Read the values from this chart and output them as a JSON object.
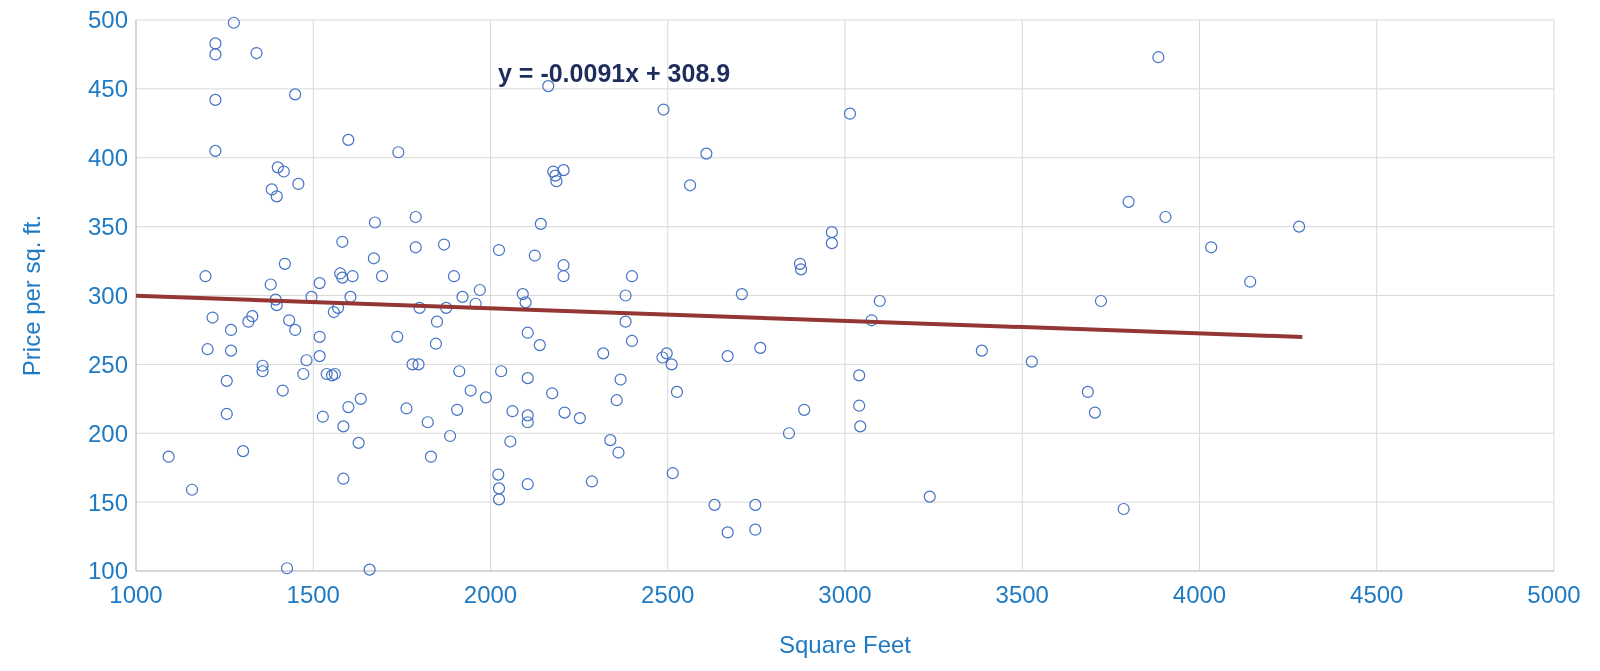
{
  "chart_data": {
    "type": "scatter",
    "xlabel": "Square Feet",
    "ylabel": "Price per sq. ft.",
    "xlim": [
      1000,
      5000
    ],
    "xticks": [
      1000,
      1500,
      2000,
      2500,
      3000,
      3500,
      4000,
      4500,
      5000
    ],
    "ylim": [
      100,
      500
    ],
    "yticks": [
      100,
      150,
      200,
      250,
      300,
      350,
      400,
      450,
      500
    ],
    "grid": true,
    "annotations": [
      "y = -0.0091x + 308.9"
    ],
    "series": [
      {
        "marker": "circle",
        "color": "#4472c4",
        "x": [
          1092,
          1158,
          1196,
          1202,
          1216,
          1224,
          1224,
          1224,
          1224,
          1276,
          1340,
          1256,
          1256,
          1268,
          1268,
          1302,
          1317,
          1328,
          1357,
          1357,
          1380,
          1383,
          1397,
          1400,
          1417,
          1394,
          1397,
          1414,
          1420,
          1432,
          1426,
          1449,
          1449,
          1458,
          1481,
          1472,
          1495,
          1518,
          1518,
          1518,
          1527,
          1538,
          1553,
          1561,
          1558,
          1570,
          1576,
          1582,
          1582,
          1585,
          1585,
          1599,
          1599,
          1605,
          1611,
          1628,
          1634,
          1671,
          1674,
          1659,
          1694,
          1737,
          1740,
          1763,
          1780,
          1789,
          1789,
          1797,
          1800,
          1823,
          1832,
          1849,
          1846,
          1869,
          1875,
          1886,
          1897,
          1906,
          1912,
          1921,
          1944,
          1958,
          1970,
          1987,
          2022,
          2024,
          2024,
          2024,
          2030,
          2056,
          2062,
          2091,
          2099,
          2105,
          2105,
          2105,
          2105,
          2105,
          2125,
          2142,
          2139,
          2163,
          2174,
          2177,
          2183,
          2186,
          2206,
          2206,
          2206,
          2209,
          2252,
          2286,
          2318,
          2338,
          2356,
          2361,
          2367,
          2381,
          2381,
          2399,
          2399,
          2485,
          2488,
          2497,
          2511,
          2514,
          2526,
          2563,
          2609,
          2632,
          2669,
          2669,
          2709,
          2747,
          2747,
          2761,
          2842,
          2876,
          2885,
          2873,
          2963,
          2963,
          3014,
          3040,
          3040,
          3043,
          3075,
          3098,
          3239,
          3386,
          3527,
          3685,
          3705,
          3722,
          3786,
          3800,
          3884,
          3904,
          4033,
          4143,
          4281
        ],
        "values": [
          183,
          159,
          314,
          261,
          284,
          405,
          442,
          475,
          483,
          498,
          476,
          238,
          214,
          260,
          275,
          187,
          281,
          285,
          249,
          245,
          308,
          377,
          372,
          393,
          390,
          297,
          293,
          231,
          323,
          282,
          102,
          446,
          275,
          381,
          253,
          243,
          299,
          309,
          270,
          256,
          212,
          243,
          242,
          243,
          288,
          291,
          316,
          339,
          313,
          205,
          167,
          219,
          413,
          299,
          314,
          193,
          225,
          327,
          353,
          101,
          314,
          270,
          404,
          218,
          250,
          357,
          335,
          250,
          291,
          208,
          183,
          281,
          265,
          337,
          291,
          198,
          314,
          217,
          245,
          299,
          231,
          294,
          304,
          226,
          170,
          160,
          152,
          333,
          245,
          194,
          216,
          301,
          295,
          163,
          273,
          240,
          213,
          208,
          329,
          352,
          264,
          452,
          229,
          390,
          387,
          383,
          391,
          322,
          314,
          215,
          211,
          165,
          258,
          195,
          224,
          186,
          239,
          281,
          300,
          314,
          267,
          255,
          435,
          258,
          250,
          171,
          230,
          380,
          403,
          148,
          128,
          256,
          301,
          148,
          130,
          262,
          200,
          319,
          217,
          323,
          346,
          338,
          432,
          242,
          220,
          205,
          282,
          296,
          154,
          260,
          252,
          230,
          215,
          296,
          145,
          368,
          473,
          357,
          335,
          310,
          350
        ]
      },
      {
        "type": "line",
        "marker": "none",
        "color": "#943634",
        "x": [
          1000,
          4290
        ],
        "values": [
          299.8,
          269.9
        ]
      }
    ]
  }
}
